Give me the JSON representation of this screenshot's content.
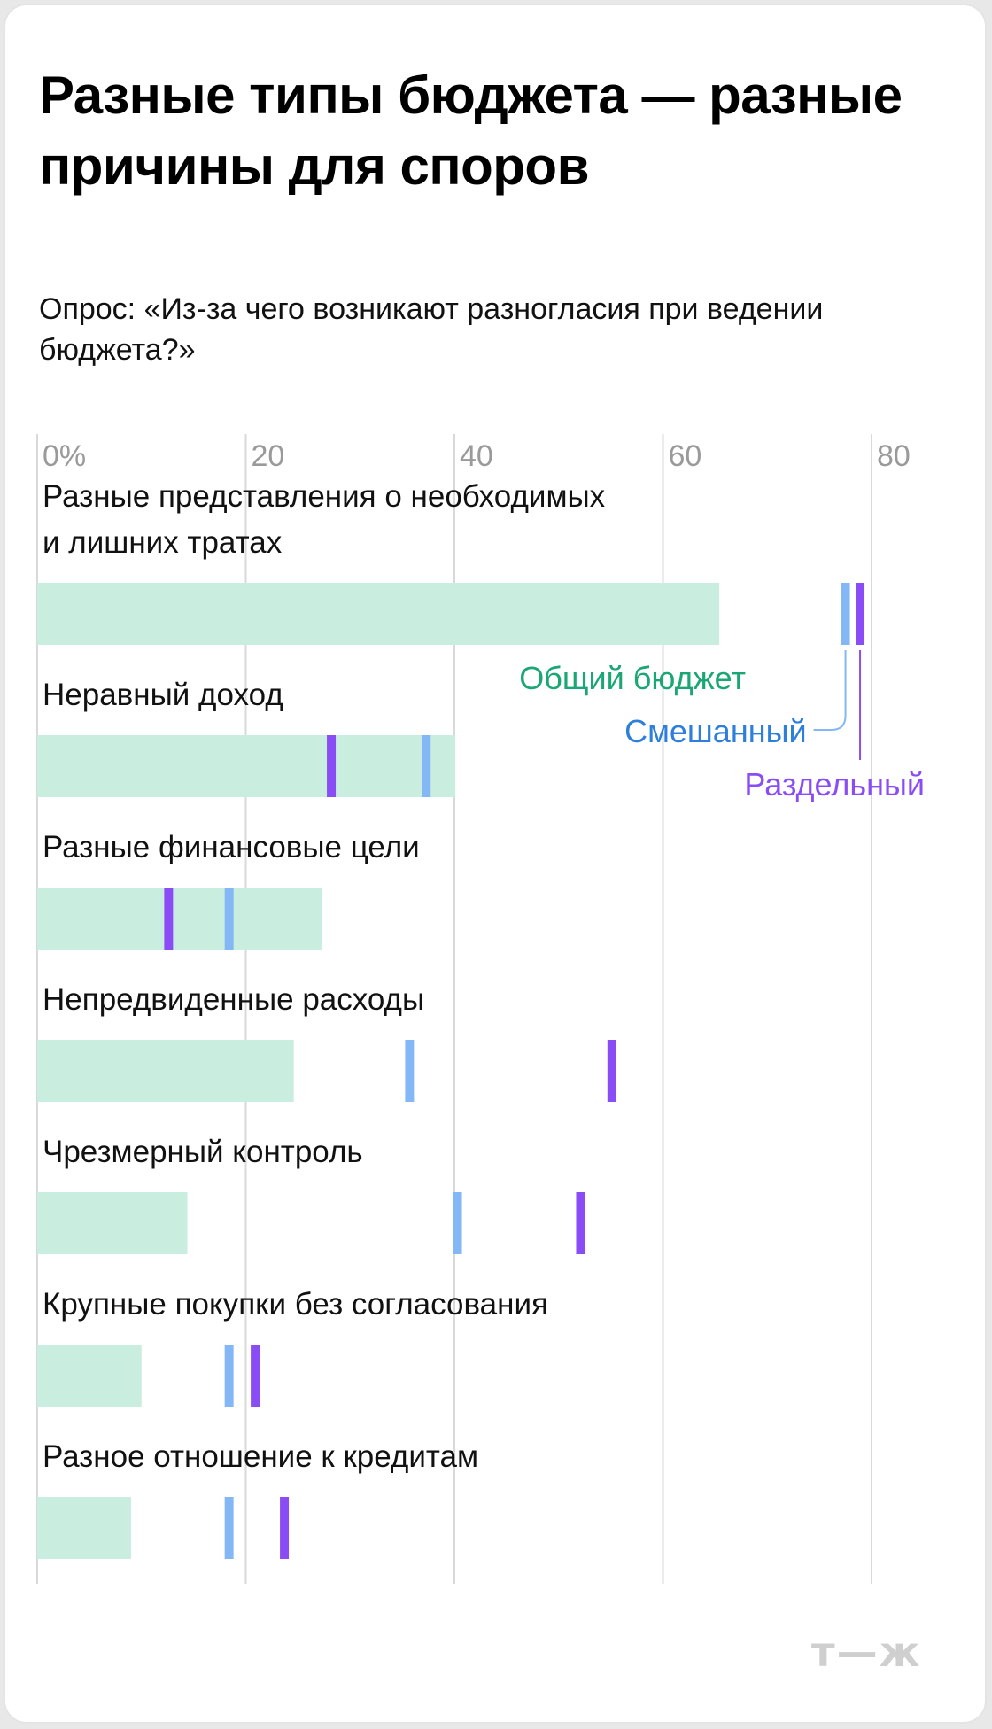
{
  "title": "Разные типы бюджета — разные причины для споров",
  "subtitle": "Опрос: «Из-за чего возникают разногласия при ведении бюджета?»",
  "logo": "т—ж",
  "chart_data": {
    "type": "bar",
    "xlim": [
      0,
      80
    ],
    "ticks": [
      {
        "value": 0,
        "label": "0%"
      },
      {
        "value": 20,
        "label": "20"
      },
      {
        "value": 40,
        "label": "40"
      },
      {
        "value": 60,
        "label": "60"
      },
      {
        "value": 80,
        "label": "80"
      }
    ],
    "categories": [
      "Разные представления о необходимых и лишних тратах",
      "Неравный доход",
      "Разные финансовые цели",
      "Непредвиденные расходы",
      "Чрезмерный контроль",
      "Крупные покупки без согласования",
      "Разное отношение к кредитам"
    ],
    "series": [
      {
        "name": "Общий бюджет",
        "color": "#c9eedf",
        "label_color": "#1aa774",
        "values": [
          65.4,
          40.1,
          27.3,
          24.6,
          14.4,
          10.0,
          9.0
        ]
      },
      {
        "name": "Смешанный",
        "color": "#84b7f5",
        "label_color": "#2e7fdb",
        "values": [
          77.5,
          37.3,
          18.4,
          35.7,
          40.3,
          18.4,
          18.4
        ]
      },
      {
        "name": "Раздельный",
        "color": "#8a4df5",
        "label_color": "#8a4df5",
        "values": [
          78.9,
          28.2,
          12.6,
          55.1,
          52.1,
          20.9,
          23.7
        ]
      }
    ],
    "grid": true,
    "legend": "inline-annotations"
  }
}
